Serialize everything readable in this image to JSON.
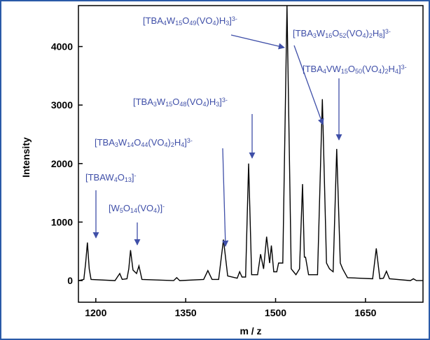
{
  "chart_data": {
    "type": "line",
    "xlabel": "m / z",
    "ylabel": "Intensity",
    "xlim": [
      1171,
      1746
    ],
    "ylim": [
      -370,
      4700
    ],
    "xticks": [
      1200,
      1350,
      1500,
      1650
    ],
    "yticks": [
      0,
      1000,
      2000,
      3000,
      4000
    ],
    "series": [
      {
        "color": "#000000",
        "x": [
          1171,
          1180,
          1183,
          1186,
          1189,
          1192,
          1232,
          1236,
          1240,
          1244,
          1252,
          1255,
          1258,
          1262,
          1268,
          1272,
          1277,
          1330,
          1335,
          1340,
          1380,
          1387,
          1394,
          1405,
          1413,
          1420,
          1436,
          1440,
          1444,
          1450,
          1455,
          1460,
          1470,
          1475,
          1480,
          1485,
          1490,
          1493,
          1497,
          1502,
          1505,
          1512,
          1519,
          1526,
          1530,
          1534,
          1540,
          1545,
          1548,
          1550,
          1555,
          1570,
          1578,
          1585,
          1590,
          1596,
          1602,
          1608,
          1612,
          1620,
          1662,
          1668,
          1674,
          1680,
          1685,
          1690,
          1725,
          1730,
          1735,
          1746
        ],
        "values": [
          0,
          20,
          300,
          650,
          200,
          20,
          0,
          60,
          120,
          20,
          30,
          200,
          520,
          180,
          120,
          250,
          20,
          0,
          50,
          0,
          20,
          170,
          20,
          20,
          700,
          80,
          40,
          150,
          60,
          60,
          2000,
          100,
          100,
          450,
          200,
          750,
          300,
          600,
          150,
          150,
          300,
          300,
          4700,
          200,
          150,
          100,
          200,
          1650,
          400,
          400,
          100,
          100,
          3100,
          300,
          200,
          150,
          2250,
          300,
          200,
          50,
          30,
          550,
          30,
          40,
          160,
          30,
          0,
          30,
          0,
          0
        ]
      }
    ],
    "annotations": [
      "[TBAW4O13]-",
      "[W5O14(VO4)]-",
      "[TBA3W14O44(VO4)2H4]3-",
      "[TBA3W15O48(VO4)H3]3-",
      "[TBA4W15O49(VO4)H3]3-",
      "[TBA3W16O52(VO4)2H8]3-",
      "[TBA4VW15O50(VO4)2H4]3-"
    ],
    "annotation_color": "#3f4fa8"
  }
}
